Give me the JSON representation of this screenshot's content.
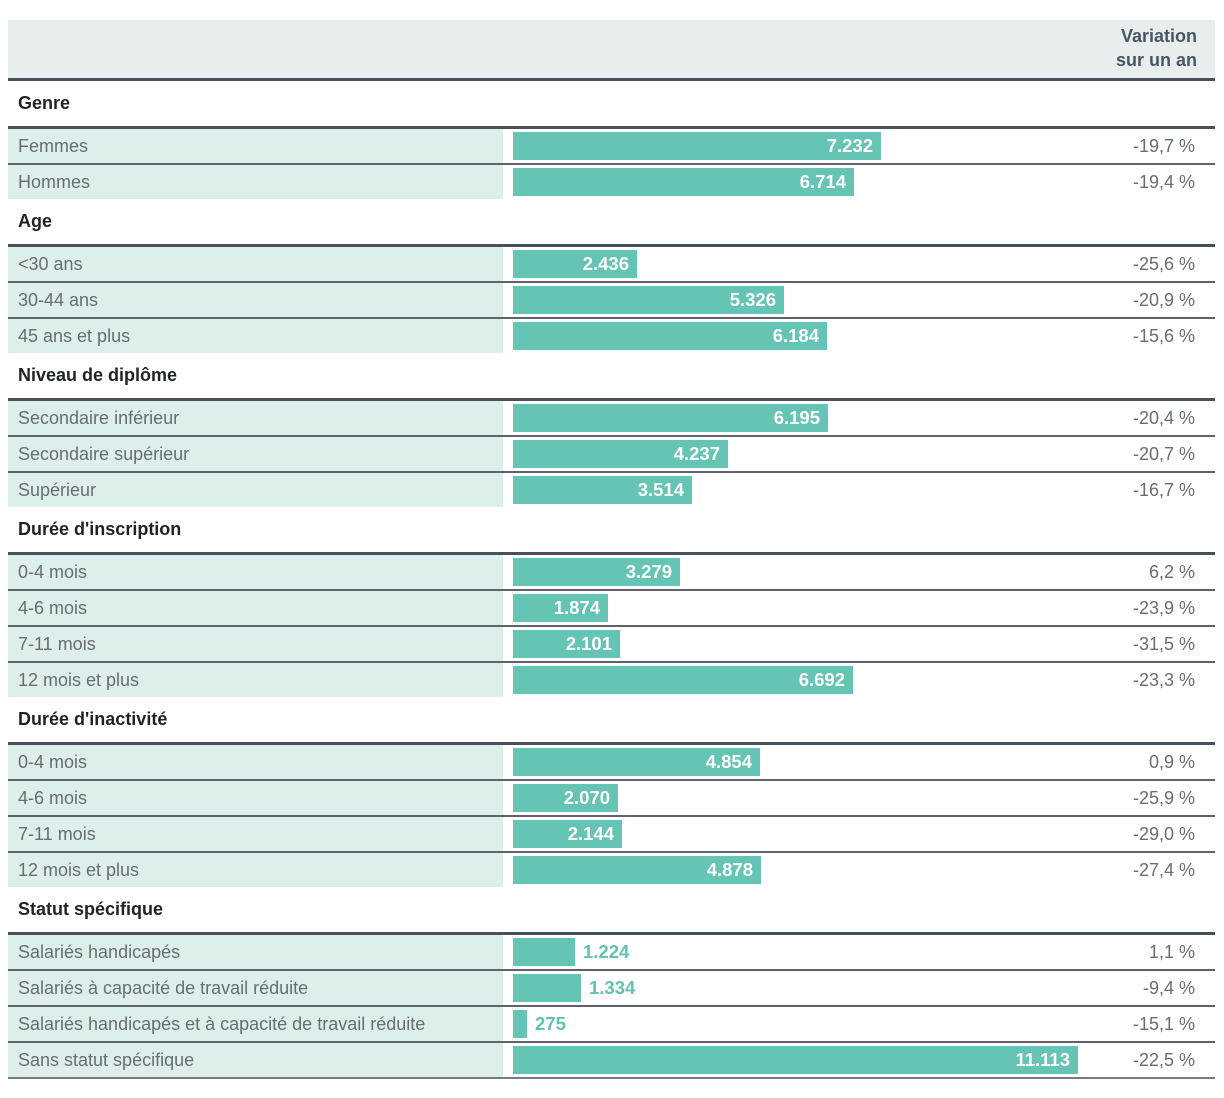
{
  "header": {
    "column_header": "Variation sur un an"
  },
  "colors": {
    "bar": "#66c4b4",
    "bar_value_outside_text": "#62c2b2",
    "row_label_background": "#dcefeb",
    "header_band_background": "#e7eeed",
    "thick_rule": "#48515a",
    "row_separator": "#5d6369",
    "muted_text": "#686d72",
    "section_title_text": "#1f2326",
    "header_text": "#4a5763"
  },
  "chart_data": {
    "type": "bar",
    "orientation": "horizontal",
    "title": "",
    "column_header": "Variation sur un an",
    "value_axis_max": 11113,
    "legend": "none",
    "grid": "off",
    "groups": [
      {
        "title": "Genre",
        "rows": [
          {
            "label": "Femmes",
            "value": 7232,
            "value_display": "7.232",
            "variation": "-19,7 %"
          },
          {
            "label": "Hommes",
            "value": 6714,
            "value_display": "6.714",
            "variation": "-19,4 %"
          }
        ]
      },
      {
        "title": "Age",
        "rows": [
          {
            "label": "<30 ans",
            "value": 2436,
            "value_display": "2.436",
            "variation": "-25,6 %"
          },
          {
            "label": "30-44 ans",
            "value": 5326,
            "value_display": "5.326",
            "variation": "-20,9 %"
          },
          {
            "label": "45 ans et plus",
            "value": 6184,
            "value_display": "6.184",
            "variation": "-15,6 %"
          }
        ]
      },
      {
        "title": "Niveau de diplôme",
        "rows": [
          {
            "label": "Secondaire inférieur",
            "value": 6195,
            "value_display": "6.195",
            "variation": "-20,4 %"
          },
          {
            "label": "Secondaire supérieur",
            "value": 4237,
            "value_display": "4.237",
            "variation": "-20,7 %"
          },
          {
            "label": "Supérieur",
            "value": 3514,
            "value_display": "3.514",
            "variation": "-16,7 %"
          }
        ]
      },
      {
        "title": "Durée d'inscription",
        "rows": [
          {
            "label": "0-4 mois",
            "value": 3279,
            "value_display": "3.279",
            "variation": "6,2 %"
          },
          {
            "label": "4-6 mois",
            "value": 1874,
            "value_display": "1.874",
            "variation": "-23,9 %"
          },
          {
            "label": "7-11 mois",
            "value": 2101,
            "value_display": "2.101",
            "variation": "-31,5 %"
          },
          {
            "label": "12 mois et plus",
            "value": 6692,
            "value_display": "6.692",
            "variation": "-23,3 %"
          }
        ]
      },
      {
        "title": "Durée d'inactivité",
        "rows": [
          {
            "label": "0-4 mois",
            "value": 4854,
            "value_display": "4.854",
            "variation": "0,9 %"
          },
          {
            "label": "4-6 mois",
            "value": 2070,
            "value_display": "2.070",
            "variation": "-25,9 %"
          },
          {
            "label": "7-11 mois",
            "value": 2144,
            "value_display": "2.144",
            "variation": "-29,0 %"
          },
          {
            "label": "12 mois et plus",
            "value": 4878,
            "value_display": "4.878",
            "variation": "-27,4 %"
          }
        ]
      },
      {
        "title": "Statut spécifique",
        "rows": [
          {
            "label": "Salariés handicapés",
            "value": 1224,
            "value_display": "1.224",
            "variation": "1,1 %"
          },
          {
            "label": "Salariés à capacité de travail réduite",
            "value": 1334,
            "value_display": "1.334",
            "variation": "-9,4 %"
          },
          {
            "label": "Salariés handicapés et à capacité de travail réduite",
            "value": 275,
            "value_display": "275",
            "variation": "-15,1 %"
          },
          {
            "label": "Sans statut spécifique",
            "value": 11113,
            "value_display": "11.113",
            "variation": "-22,5 %"
          }
        ]
      }
    ]
  }
}
